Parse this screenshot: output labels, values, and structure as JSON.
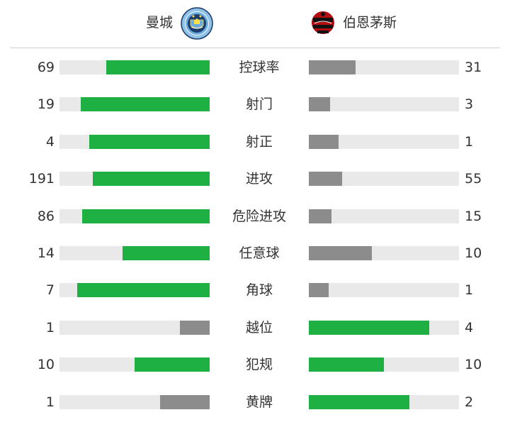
{
  "teams": {
    "home": {
      "name": "曼城",
      "crest": "manchester-city-crest"
    },
    "away": {
      "name": "伯恩茅斯",
      "crest": "bournemouth-crest"
    }
  },
  "colors": {
    "win": "#1fb043",
    "lose": "#8c8c8c",
    "track": "#e9e9e9"
  },
  "stats": [
    {
      "label": "控球率",
      "home": "69",
      "away": "31",
      "home_fill": 0.69,
      "away_fill": 0.31,
      "home_leads": true,
      "away_leads": false
    },
    {
      "label": "射门",
      "home": "19",
      "away": "3",
      "home_fill": 0.86,
      "away_fill": 0.14,
      "home_leads": true,
      "away_leads": false
    },
    {
      "label": "射正",
      "home": "4",
      "away": "1",
      "home_fill": 0.8,
      "away_fill": 0.2,
      "home_leads": true,
      "away_leads": false
    },
    {
      "label": "进攻",
      "home": "191",
      "away": "55",
      "home_fill": 0.78,
      "away_fill": 0.22,
      "home_leads": true,
      "away_leads": false
    },
    {
      "label": "危险进攻",
      "home": "86",
      "away": "15",
      "home_fill": 0.85,
      "away_fill": 0.15,
      "home_leads": true,
      "away_leads": false
    },
    {
      "label": "任意球",
      "home": "14",
      "away": "10",
      "home_fill": 0.58,
      "away_fill": 0.42,
      "home_leads": true,
      "away_leads": false
    },
    {
      "label": "角球",
      "home": "7",
      "away": "1",
      "home_fill": 0.88,
      "away_fill": 0.13,
      "home_leads": true,
      "away_leads": false
    },
    {
      "label": "越位",
      "home": "1",
      "away": "4",
      "home_fill": 0.2,
      "away_fill": 0.8,
      "home_leads": false,
      "away_leads": true
    },
    {
      "label": "犯规",
      "home": "10",
      "away": "10",
      "home_fill": 0.5,
      "away_fill": 0.5,
      "home_leads": true,
      "away_leads": true
    },
    {
      "label": "黄牌",
      "home": "1",
      "away": "2",
      "home_fill": 0.33,
      "away_fill": 0.67,
      "home_leads": false,
      "away_leads": true
    }
  ]
}
